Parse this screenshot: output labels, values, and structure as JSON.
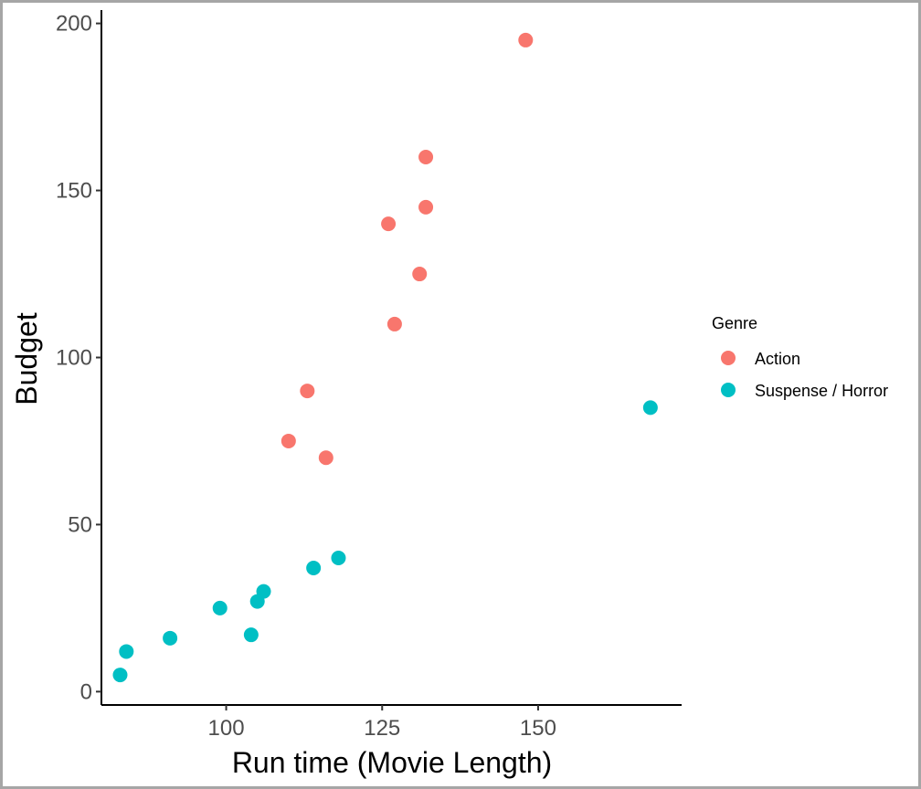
{
  "chart_data": {
    "type": "scatter",
    "title": "",
    "xlabel": "Run time (Movie Length)",
    "ylabel": "Budget",
    "xlim": [
      80,
      173
    ],
    "ylim": [
      -4,
      204
    ],
    "x_ticks": [
      100,
      125,
      150
    ],
    "y_ticks": [
      0,
      50,
      100,
      150,
      200
    ],
    "grid": false,
    "legend": {
      "title": "Genre",
      "position": "right"
    },
    "series": [
      {
        "name": "Action",
        "color": "#F8766D",
        "points": [
          {
            "x": 148,
            "y": 195
          },
          {
            "x": 132,
            "y": 160
          },
          {
            "x": 132,
            "y": 145
          },
          {
            "x": 126,
            "y": 140
          },
          {
            "x": 131,
            "y": 125
          },
          {
            "x": 127,
            "y": 110
          },
          {
            "x": 113,
            "y": 90
          },
          {
            "x": 110,
            "y": 75
          },
          {
            "x": 116,
            "y": 70
          }
        ]
      },
      {
        "name": "Suspense / Horror",
        "color": "#00BFC4",
        "points": [
          {
            "x": 168,
            "y": 85
          },
          {
            "x": 118,
            "y": 40
          },
          {
            "x": 114,
            "y": 37
          },
          {
            "x": 106,
            "y": 30
          },
          {
            "x": 105,
            "y": 27
          },
          {
            "x": 99,
            "y": 25
          },
          {
            "x": 104,
            "y": 17
          },
          {
            "x": 91,
            "y": 16
          },
          {
            "x": 84,
            "y": 12
          },
          {
            "x": 83,
            "y": 5
          }
        ]
      }
    ]
  }
}
